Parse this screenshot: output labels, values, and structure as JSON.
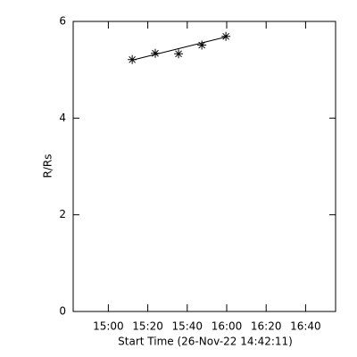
{
  "chart_data": {
    "type": "scatter",
    "x_label": "Start Time (26-Nov-22 14:42:11)",
    "y_label": "R/Rs",
    "x": [
      912.1,
      923.8,
      935.6,
      947.4,
      959.6
    ],
    "values": [
      5.21,
      5.34,
      5.33,
      5.51,
      5.69
    ],
    "marker": "asterisk",
    "color": "#000000",
    "fit": {
      "x": [
        912.1,
        959.6
      ],
      "values": [
        5.2,
        5.68
      ]
    },
    "xlim": [
      882.18,
      1015.2
    ],
    "ylim": [
      0,
      6
    ],
    "xticks": [
      {
        "value": 900,
        "label": "15:00"
      },
      {
        "value": 920,
        "label": "15:20"
      },
      {
        "value": 940,
        "label": "15:40"
      },
      {
        "value": 960,
        "label": "16:00"
      },
      {
        "value": 980,
        "label": "16:20"
      },
      {
        "value": 1000,
        "label": "16:40"
      }
    ],
    "yticks": [
      0,
      2,
      4,
      6
    ]
  }
}
